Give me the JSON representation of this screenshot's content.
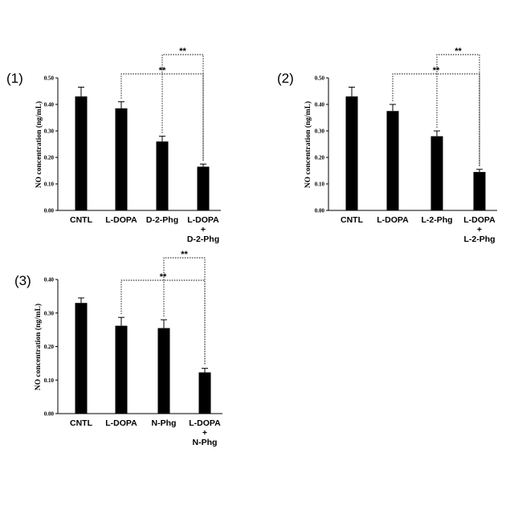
{
  "chart_data": [
    {
      "type": "bar",
      "panel": "(1)",
      "ylabel": "NO concentration (ng/mL)",
      "ylim": [
        0,
        0.5
      ],
      "yticks": [
        "0.00",
        "0.10",
        "0.20",
        "0.30",
        "0.40",
        "0.50"
      ],
      "categories": [
        [
          "CNTL"
        ],
        [
          "L-DOPA"
        ],
        [
          "D-2-Phg"
        ],
        [
          "L-DOPA",
          "+",
          "D-2-Phg"
        ]
      ],
      "values": [
        0.43,
        0.385,
        0.26,
        0.165
      ],
      "errors": [
        0.035,
        0.025,
        0.02,
        0.01
      ],
      "significance": [
        {
          "from": 1,
          "to": 3,
          "label": "**"
        },
        {
          "from": 2,
          "to": 3,
          "label": "**"
        }
      ]
    },
    {
      "type": "bar",
      "panel": "(2)",
      "ylabel": "NO concentration (ng/mL)",
      "ylim": [
        0,
        0.5
      ],
      "yticks": [
        "0.00",
        "0.10",
        "0.20",
        "0.30",
        "0.40",
        "0.50"
      ],
      "categories": [
        [
          "CNTL"
        ],
        [
          "L-DOPA"
        ],
        [
          "L-2-Phg"
        ],
        [
          "L-DOPA",
          "+",
          "L-2-Phg"
        ]
      ],
      "values": [
        0.43,
        0.375,
        0.28,
        0.145
      ],
      "errors": [
        0.035,
        0.025,
        0.02,
        0.01
      ],
      "significance": [
        {
          "from": 1,
          "to": 3,
          "label": "**"
        },
        {
          "from": 2,
          "to": 3,
          "label": "**"
        }
      ]
    },
    {
      "type": "bar",
      "panel": "(3)",
      "ylabel": "NO concentration (ng/mL)",
      "ylim": [
        0,
        0.4
      ],
      "yticks": [
        "0.00",
        "0.10",
        "0.20",
        "0.30",
        "0.40"
      ],
      "categories": [
        [
          "CNTL"
        ],
        [
          "L-DOPA"
        ],
        [
          "N-Phg"
        ],
        [
          "L-DOPA",
          "+",
          "N-Phg"
        ]
      ],
      "values": [
        0.33,
        0.262,
        0.255,
        0.123
      ],
      "errors": [
        0.015,
        0.025,
        0.025,
        0.012
      ],
      "significance": [
        {
          "from": 1,
          "to": 3,
          "label": "**"
        },
        {
          "from": 2,
          "to": 3,
          "label": "**"
        }
      ]
    }
  ],
  "colors": {
    "bar": "#000000",
    "axis": "#000000",
    "bracket": "#000000"
  }
}
